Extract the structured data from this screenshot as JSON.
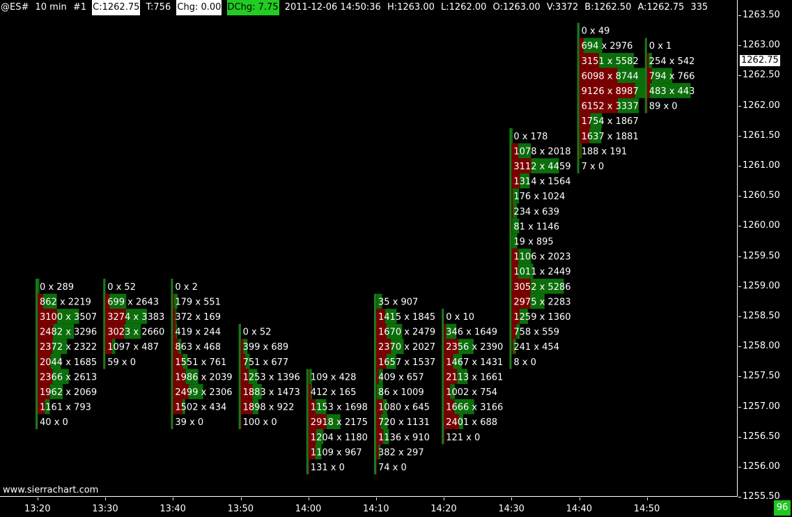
{
  "header": {
    "symbol": "@ES#",
    "timeframe": "10 min",
    "chart_number": "#1",
    "close": "C:1262.75",
    "trades": "T:756",
    "change": "Chg: 0.00",
    "daily_change": "DChg: 7.75",
    "timestamp": "2011-12-06 14:50:36",
    "high": "H:1263.00",
    "low": "L:1262.00",
    "open": "O:1263.00",
    "volume": "V:3372",
    "bid": "B:1262.50",
    "ask": "A:1262.75",
    "truncated": "335",
    "colors": {
      "close_bg": "#ffffff",
      "change_bg": "#ffffff",
      "daily_change_bg": "#22cc22"
    }
  },
  "price_axis": {
    "labels": [
      "1263.50",
      "1263.00",
      "1262.50",
      "1262.00",
      "1261.50",
      "1261.00",
      "1260.50",
      "1260.00",
      "1259.50",
      "1259.00",
      "1258.50",
      "1258.00",
      "1257.50",
      "1257.00",
      "1256.50",
      "1256.00",
      "1255.50"
    ],
    "current_price": "1262.75"
  },
  "time_axis": {
    "labels": [
      "13:20",
      "13:30",
      "13:40",
      "13:50",
      "14:00",
      "14:10",
      "14:20",
      "14:30",
      "14:40",
      "14:50"
    ]
  },
  "footer": {
    "website": "www.sierrachart.com",
    "counter": "96"
  },
  "colors": {
    "bid": "#7a0000",
    "ask": "#0b6e0b",
    "background": "#000000",
    "text": "#ffffff"
  },
  "chart_data": {
    "type": "table",
    "description_type": "footprint",
    "price_step": 0.25,
    "bars": [
      {
        "time": "13:20",
        "top": 1259.0,
        "rows": [
          [
            0,
            289
          ],
          [
            862,
            2219
          ],
          [
            3100,
            3507
          ],
          [
            2482,
            3296
          ],
          [
            2372,
            2322
          ],
          [
            2044,
            1685
          ],
          [
            2366,
            2613
          ],
          [
            1962,
            2069
          ],
          [
            1161,
            793
          ],
          [
            40,
            0
          ]
        ]
      },
      {
        "time": "13:30",
        "top": 1259.0,
        "rows": [
          [
            0,
            52
          ],
          [
            699,
            2643
          ],
          [
            3274,
            3383
          ],
          [
            3023,
            2660
          ],
          [
            1097,
            487
          ],
          [
            59,
            0
          ]
        ]
      },
      {
        "time": "13:40",
        "top": 1259.0,
        "rows": [
          [
            0,
            2
          ],
          [
            179,
            551
          ],
          [
            372,
            169
          ],
          [
            419,
            244
          ],
          [
            863,
            468
          ],
          [
            1551,
            761
          ],
          [
            1986,
            2039
          ],
          [
            2499,
            2306
          ],
          [
            1502,
            434
          ],
          [
            39,
            0
          ]
        ]
      },
      {
        "time": "13:50",
        "top": 1258.25,
        "rows": [
          [
            0,
            52
          ],
          [
            399,
            689
          ],
          [
            751,
            677
          ],
          [
            1253,
            1396
          ],
          [
            1883,
            1473
          ],
          [
            1898,
            922
          ],
          [
            100,
            0
          ]
        ]
      },
      {
        "time": "14:00",
        "top": 1257.5,
        "rows": [
          [
            109,
            428
          ],
          [
            412,
            165
          ],
          [
            1153,
            1698
          ],
          [
            2918,
            2175
          ],
          [
            1204,
            1180
          ],
          [
            1109,
            967
          ],
          [
            131,
            0
          ]
        ]
      },
      {
        "time": "14:10",
        "top": 1258.75,
        "rows": [
          [
            35,
            907
          ],
          [
            1415,
            1845
          ],
          [
            1670,
            2479
          ],
          [
            2370,
            2027
          ],
          [
            1657,
            1537
          ],
          [
            409,
            657
          ],
          [
            86,
            1009
          ],
          [
            1080,
            645
          ],
          [
            720,
            1131
          ],
          [
            1136,
            910
          ],
          [
            382,
            297
          ],
          [
            74,
            0
          ]
        ]
      },
      {
        "time": "14:20",
        "top": 1258.5,
        "rows": [
          [
            0,
            10
          ],
          [
            346,
            1649
          ],
          [
            2356,
            2390
          ],
          [
            1467,
            1431
          ],
          [
            2113,
            1661
          ],
          [
            1002,
            754
          ],
          [
            1666,
            3166
          ],
          [
            2401,
            688
          ],
          [
            121,
            0
          ]
        ]
      },
      {
        "time": "14:30",
        "top": 1261.5,
        "rows": [
          [
            0,
            178
          ],
          [
            1078,
            2018
          ],
          [
            3112,
            4459
          ],
          [
            1314,
            1564
          ],
          [
            176,
            1024
          ],
          [
            234,
            639
          ],
          [
            81,
            1146
          ],
          [
            19,
            895
          ],
          [
            1106,
            2023
          ],
          [
            1011,
            2449
          ],
          [
            3052,
            5286
          ],
          [
            2975,
            2283
          ],
          [
            1259,
            1360
          ],
          [
            758,
            559
          ],
          [
            241,
            454
          ],
          [
            8,
            0
          ]
        ]
      },
      {
        "time": "14:40",
        "top": 1263.25,
        "rows": [
          [
            0,
            49
          ],
          [
            694,
            2976
          ],
          [
            3151,
            5582
          ],
          [
            6098,
            8744
          ],
          [
            9126,
            8987
          ],
          [
            6152,
            3337
          ],
          [
            1754,
            1867
          ],
          [
            1637,
            1881
          ],
          [
            188,
            191
          ],
          [
            7,
            0
          ]
        ]
      },
      {
        "time": "14:50",
        "top": 1263.0,
        "rows": [
          [
            0,
            1
          ],
          [
            254,
            542
          ],
          [
            794,
            766
          ],
          [
            483,
            443
          ],
          [
            89,
            0
          ]
        ]
      }
    ]
  }
}
